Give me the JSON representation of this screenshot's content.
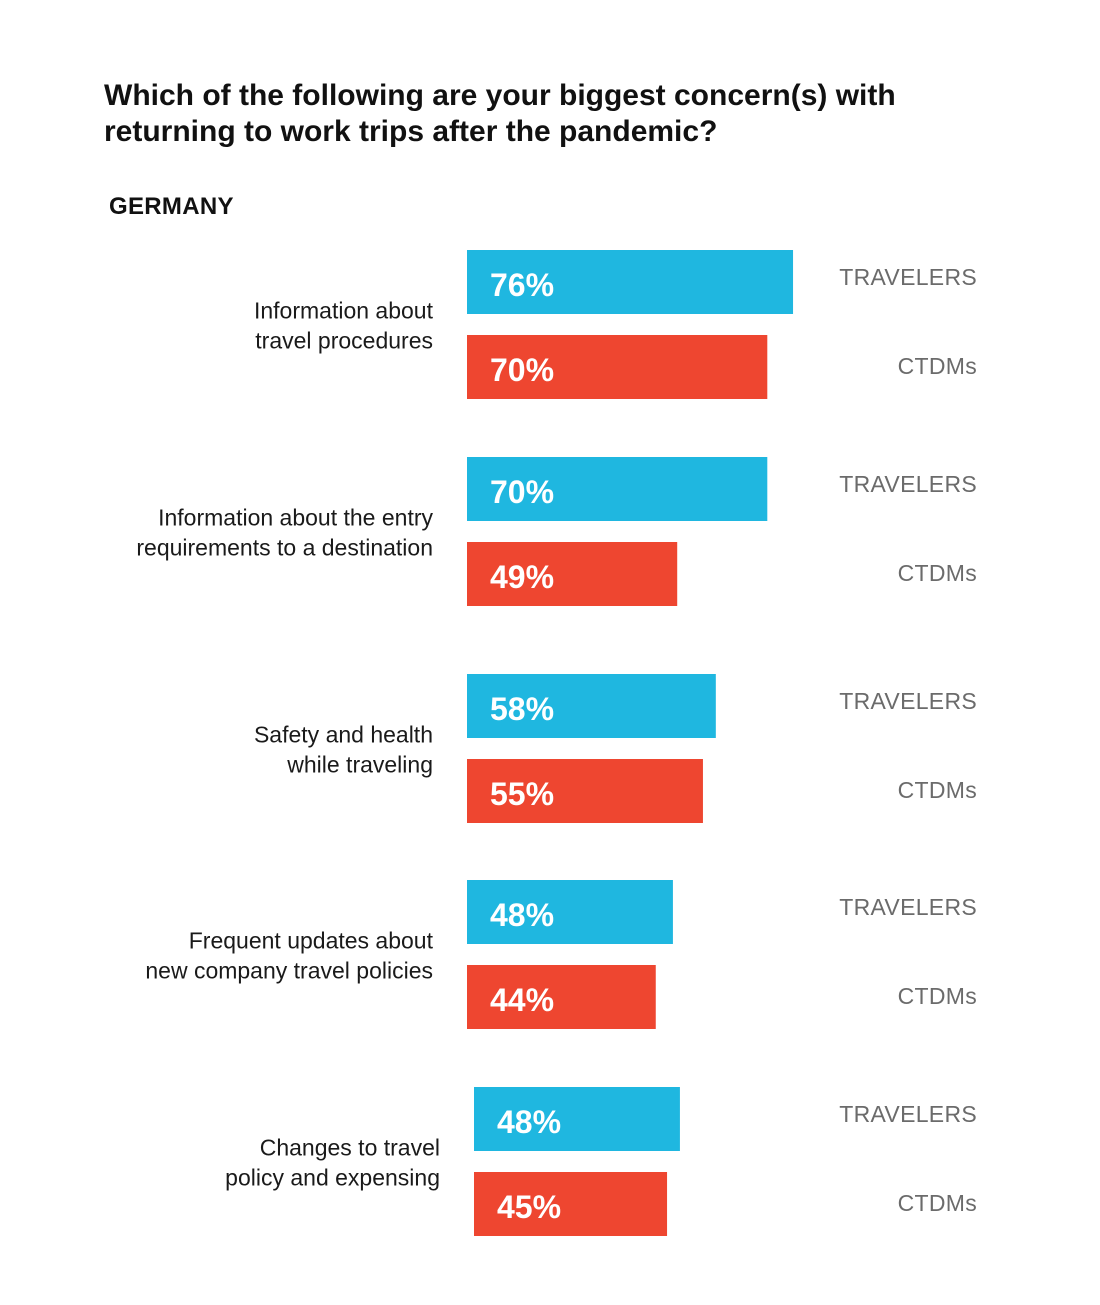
{
  "chart_data": {
    "type": "bar",
    "orientation": "horizontal",
    "title": "Which of the following are your biggest concern(s) with returning to work trips after the pandemic?",
    "title_lines": [
      "Which of the following are your biggest concern(s) with",
      "returning to work trips after the pandemic?"
    ],
    "subtitle": "GERMANY",
    "value_suffix": "%",
    "categories": [
      [
        "Information about",
        "travel procedures"
      ],
      [
        "Information about the entry",
        "requirements to a destination"
      ],
      [
        "Safety and health",
        "while traveling"
      ],
      [
        "Frequent updates about",
        "new company travel policies"
      ],
      [
        "Changes to travel",
        "policy and expensing"
      ]
    ],
    "series": [
      {
        "name": "TRAVELERS",
        "color": "#1FB7E0",
        "values": [
          76,
          70,
          58,
          48,
          48
        ]
      },
      {
        "name": "CTDMs",
        "color": "#EE4630",
        "values": [
          70,
          49,
          55,
          44,
          45
        ]
      }
    ],
    "xlim": [
      0,
      100
    ],
    "grid": false,
    "legend": "inline-right"
  }
}
